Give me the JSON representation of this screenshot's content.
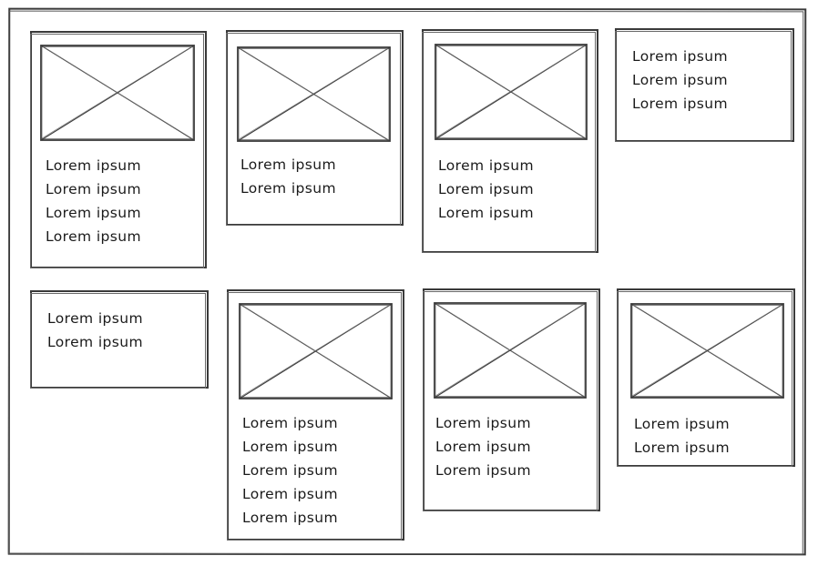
{
  "cards": [
    {
      "id": "card-1",
      "image": true,
      "lines": [
        "Lorem ipsum",
        "Lorem ipsum",
        "Lorem ipsum",
        "Lorem ipsum"
      ]
    },
    {
      "id": "card-2",
      "image": true,
      "lines": [
        "Lorem ipsum",
        "Lorem ipsum"
      ]
    },
    {
      "id": "card-3",
      "image": true,
      "lines": [
        "Lorem ipsum",
        "Lorem ipsum",
        "Lorem ipsum"
      ]
    },
    {
      "id": "card-4",
      "image": false,
      "lines": [
        "Lorem ipsum",
        "Lorem ipsum",
        "Lorem ipsum"
      ]
    },
    {
      "id": "card-5",
      "image": false,
      "lines": [
        "Lorem ipsum",
        "Lorem ipsum"
      ]
    },
    {
      "id": "card-6",
      "image": true,
      "lines": [
        "Lorem ipsum",
        "Lorem ipsum",
        "Lorem ipsum",
        "Lorem ipsum",
        "Lorem ipsum"
      ]
    },
    {
      "id": "card-7",
      "image": true,
      "lines": [
        "Lorem ipsum",
        "Lorem ipsum",
        "Lorem ipsum"
      ]
    },
    {
      "id": "card-8",
      "image": true,
      "lines": [
        "Lorem ipsum",
        "Lorem ipsum"
      ]
    }
  ]
}
